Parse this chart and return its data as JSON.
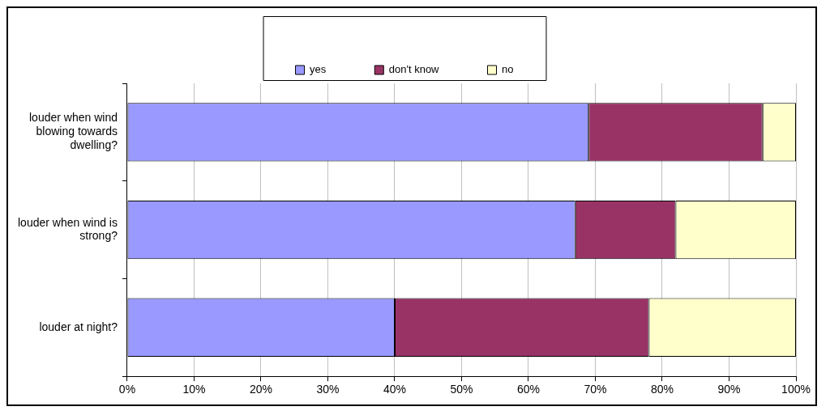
{
  "chart_data": {
    "type": "bar",
    "orientation": "horizontal",
    "stacked": true,
    "categories": [
      "louder when wind blowing towards dwelling?",
      "louder when wind is strong?",
      "louder at night?"
    ],
    "series": [
      {
        "name": "yes",
        "color": "#9999ff",
        "values": [
          69,
          67,
          40
        ]
      },
      {
        "name": "don't know",
        "color": "#993366",
        "values": [
          26,
          15,
          38
        ]
      },
      {
        "name": "no",
        "color": "#ffffcc",
        "values": [
          5,
          18,
          22
        ]
      }
    ],
    "xlim": [
      0,
      100
    ],
    "xticks": [
      {
        "value": 0,
        "label": "0%"
      },
      {
        "value": 10,
        "label": "10%"
      },
      {
        "value": 20,
        "label": "20%"
      },
      {
        "value": 30,
        "label": "30%"
      },
      {
        "value": 40,
        "label": "40%"
      },
      {
        "value": 50,
        "label": "50%"
      },
      {
        "value": 60,
        "label": "60%"
      },
      {
        "value": 70,
        "label": "70%"
      },
      {
        "value": 80,
        "label": "80%"
      },
      {
        "value": 90,
        "label": "90%"
      },
      {
        "value": 100,
        "label": "100%"
      }
    ],
    "grid": "x",
    "legend": "top"
  }
}
